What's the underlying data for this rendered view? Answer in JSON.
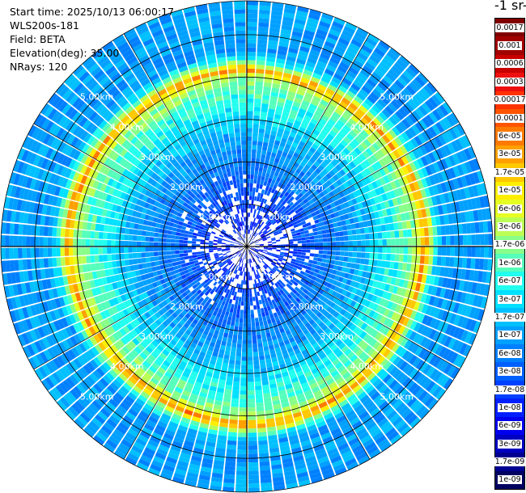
{
  "info": {
    "start_time": "Start time: 2025/10/13 06:00:17",
    "instrument": "WLS200s-181",
    "field": "Field: BETA",
    "elevation": "Elevation(deg): 35.00",
    "nrays": "NRays: 120"
  },
  "colorbar": {
    "title": "-1 sr-",
    "labels": [
      "0.0017",
      "0.001",
      "0.0006",
      "0.0003",
      "0.00017",
      "0.0001",
      "6e-05",
      "3e-05",
      "1.7e-05",
      "1e-05",
      "6e-06",
      "3e-06",
      "1.7e-06",
      "1e-06",
      "6e-07",
      "3e-07",
      "1.7e-07",
      "1e-07",
      "6e-08",
      "3e-08",
      "1.7e-08",
      "1e-08",
      "6e-09",
      "3e-09",
      "1.7e-09",
      "1e-09"
    ],
    "colors": [
      "#800000",
      "#a00000",
      "#c80000",
      "#ee1010",
      "#ff3300",
      "#ff5500",
      "#ff7a00",
      "#ffa000",
      "#ffc800",
      "#ffee00",
      "#e6ff22",
      "#bbff55",
      "#88ff88",
      "#55ffbb",
      "#22ffee",
      "#00e0ff",
      "#00c0ff",
      "#00a0ff",
      "#0080ff",
      "#0060ff",
      "#0040ff",
      "#0020ff",
      "#0000ee",
      "#0000c0",
      "#000090",
      "#000060"
    ]
  },
  "chart_data": {
    "type": "heatmap",
    "projection": "polar-ppi",
    "field": "BETA",
    "n_rays": 120,
    "range_max_km": 5.8,
    "range_rings_km": [
      1.0,
      2.0,
      3.0,
      4.0,
      5.0
    ],
    "ring_labels": [
      "1.00km",
      "2.00km",
      "3.00km",
      "4.00km",
      "5.00km"
    ],
    "ring_label_azimuths_deg": [
      45,
      135,
      225,
      315
    ],
    "spoke_azimuths_deg": [
      0,
      30,
      60,
      90,
      120,
      150,
      180,
      210,
      240,
      270,
      300,
      330
    ],
    "range_profile": {
      "range_km": [
        0.0,
        0.5,
        1.0,
        1.5,
        2.0,
        2.5,
        2.8,
        3.1,
        3.4,
        3.7,
        3.9,
        4.05,
        4.15,
        4.25,
        4.4,
        4.6,
        5.0,
        5.8
      ],
      "color_index": [
        21,
        21,
        20,
        19,
        18,
        17,
        16,
        15,
        14,
        13,
        12,
        10,
        6,
        10,
        14,
        17,
        17,
        17
      ]
    },
    "grid": true
  }
}
